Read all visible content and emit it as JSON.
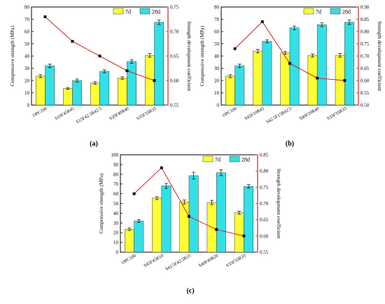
{
  "colors": {
    "bar_7d": "#ffff33",
    "bar_28d": "#33e0e8",
    "line": "#cc2222",
    "marker": "#111111",
    "axis_right": "#cc2222",
    "axis_left": "#000000"
  },
  "chart_data": [
    {
      "type": "bar",
      "panel_label": "(a)",
      "categories": [
        "OPC100",
        "S10F45R45",
        "S15F42.5R42.5",
        "S20F40R40",
        "S33F33R33"
      ],
      "series": [
        {
          "name": "7d",
          "values": [
            23.5,
            13.5,
            18,
            22,
            40.5
          ],
          "errors": [
            1.2,
            0.8,
            1.0,
            1.0,
            1.5
          ]
        },
        {
          "name": "28d",
          "values": [
            32,
            20,
            27.5,
            35.5,
            67.5
          ],
          "errors": [
            1.5,
            1.2,
            1.2,
            1.5,
            1.8
          ]
        }
      ],
      "line_series": {
        "values": [
          0.73,
          0.68,
          0.65,
          0.62,
          0.6
        ]
      },
      "ylabel": "Compressive strength (MPa)",
      "y2label": "Strength development coefficient",
      "ylim": [
        0,
        80
      ],
      "yticks": [
        0,
        10,
        20,
        30,
        40,
        50,
        60,
        70,
        80
      ],
      "y2lim": [
        0.55,
        0.75
      ],
      "y2ticks": [
        0.55,
        0.6,
        0.65,
        0.7,
        0.75
      ],
      "y2ticklabels": [
        "0.55",
        "0.60",
        "0.65",
        "0.70",
        "0.75"
      ],
      "legend": "top-right"
    },
    {
      "type": "bar",
      "panel_label": "(b)",
      "categories": [
        "OPC100",
        "S45F10R45",
        "S42.5F15R42.5",
        "S40F20R40",
        "S33F33R33"
      ],
      "series": [
        {
          "name": "7d",
          "values": [
            23.5,
            44,
            42.5,
            40.5,
            40.5
          ],
          "errors": [
            1.2,
            1.5,
            1.2,
            1.2,
            1.5
          ]
        },
        {
          "name": "28d",
          "values": [
            32,
            52,
            63,
            65.5,
            67.5
          ],
          "errors": [
            1.5,
            1.2,
            1.5,
            1.5,
            1.8
          ]
        }
      ],
      "line_series": {
        "values": [
          0.73,
          0.84,
          0.67,
          0.61,
          0.6
        ]
      },
      "ylabel": "Compressive strength (MPa)",
      "y2label": "Strength development coefficient",
      "ylim": [
        0,
        80
      ],
      "yticks": [
        0,
        10,
        20,
        30,
        40,
        50,
        60,
        70,
        80
      ],
      "y2lim": [
        0.5,
        0.9
      ],
      "y2ticks": [
        0.5,
        0.55,
        0.6,
        0.65,
        0.7,
        0.75,
        0.8,
        0.85,
        0.9
      ],
      "y2ticklabels": [
        "0.50",
        "0.55",
        "0.60",
        "0.65",
        "0.70",
        "0.75",
        "0.80",
        "0.85",
        "0.90"
      ],
      "legend": "top-right"
    },
    {
      "type": "bar",
      "panel_label": "(c)",
      "categories": [
        "OPC100",
        "S45F45R10",
        "S42.5F42.5R15",
        "S40F40R20",
        "S33F33R33"
      ],
      "series": [
        {
          "name": "7d",
          "values": [
            23.5,
            55.5,
            51.5,
            51,
            40.5
          ],
          "errors": [
            1.2,
            1.5,
            2.0,
            2.2,
            1.5
          ]
        },
        {
          "name": "28d",
          "values": [
            32,
            68,
            78.5,
            81.5,
            67.5
          ],
          "errors": [
            1.5,
            2.5,
            3.5,
            3.0,
            1.8
          ]
        }
      ],
      "line_series": {
        "values": [
          0.73,
          0.81,
          0.66,
          0.62,
          0.6
        ]
      },
      "ylabel": "Compressive strength (MPa)",
      "y2label": "Strength development coefficient",
      "ylim": [
        0,
        100
      ],
      "yticks": [
        0,
        10,
        20,
        30,
        40,
        50,
        60,
        70,
        80,
        90,
        100
      ],
      "y2lim": [
        0.55,
        0.85
      ],
      "y2ticks": [
        0.55,
        0.6,
        0.65,
        0.7,
        0.75,
        0.8,
        0.85
      ],
      "y2ticklabels": [
        "0.55",
        "0.60",
        "0.65",
        "0.70",
        "0.75",
        "0.80",
        "0.85"
      ],
      "legend": "top-right"
    }
  ]
}
